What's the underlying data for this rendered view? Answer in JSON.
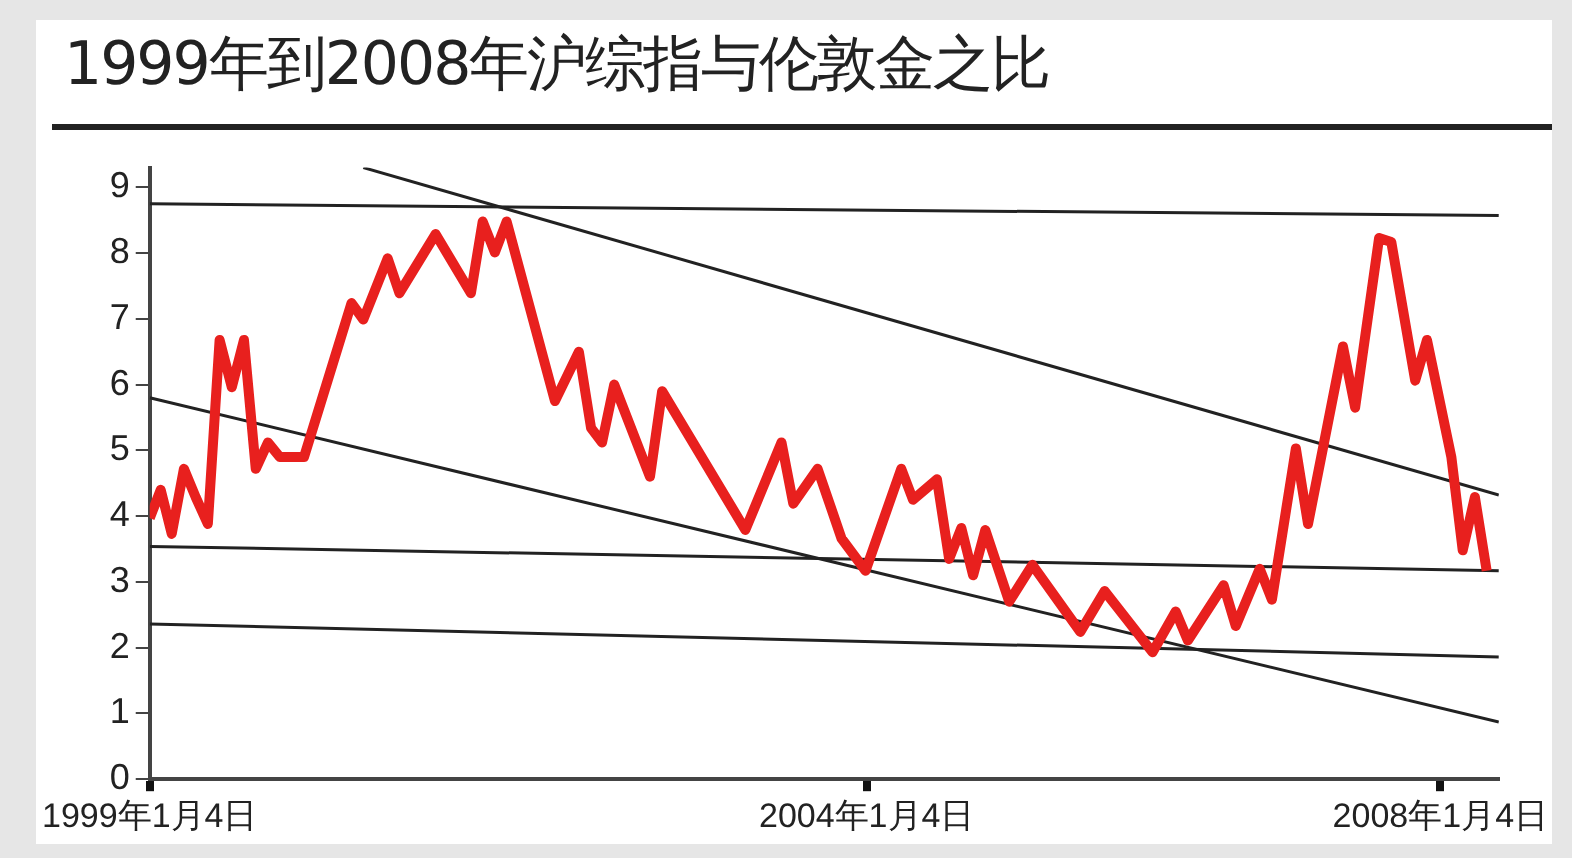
{
  "chart_data": {
    "type": "line",
    "title": "1999年到2008年沪综指与伦敦金之比",
    "xlim": [
      "1999-01-04",
      "2008-06"
    ],
    "xticks": [
      {
        "value": "1999-01-04",
        "label": "1999年1月4日"
      },
      {
        "value": "2004-01-04",
        "label": "2004年1月4日"
      },
      {
        "value": "2008-01-04",
        "label": "2008年1月4日"
      }
    ],
    "ylim": [
      0,
      9.3
    ],
    "yticks": [
      0,
      1,
      2,
      3,
      4,
      5,
      6,
      7,
      8,
      9
    ],
    "grid": false,
    "legend": false,
    "marker": "none",
    "line_style": "solid",
    "series": [
      {
        "color": "#e8201e",
        "x": [
          "1999-01-04",
          "1999-02",
          "1999-03",
          "1999-04",
          "1999-05",
          "1999-06",
          "1999-07",
          "1999-08",
          "1999-09",
          "1999-10",
          "1999-11",
          "1999-12",
          "2000-02",
          "2000-06",
          "2000-07",
          "2000-09",
          "2000-10",
          "2001-01",
          "2001-04",
          "2001-05",
          "2001-06",
          "2001-07",
          "2001-11",
          "2002-01",
          "2002-02",
          "2002-03",
          "2002-04",
          "2002-07",
          "2002-08",
          "2003-03",
          "2003-06",
          "2003-07",
          "2003-09",
          "2003-11",
          "2004-01",
          "2004-04",
          "2004-05",
          "2004-07",
          "2004-08",
          "2004-09",
          "2004-10",
          "2004-11",
          "2005-01",
          "2005-03",
          "2005-07",
          "2005-09",
          "2006-01",
          "2006-03",
          "2006-04",
          "2006-07",
          "2006-08",
          "2006-10",
          "2006-11",
          "2007-01",
          "2007-02",
          "2007-05",
          "2007-06",
          "2007-08",
          "2007-09",
          "2007-11",
          "2007-12",
          "2008-02",
          "2008-03",
          "2008-04",
          "2008-05"
        ],
        "values": [
          3.97,
          4.4,
          3.73,
          4.72,
          4.29,
          3.88,
          6.68,
          5.96,
          6.68,
          4.72,
          5.12,
          4.9,
          4.9,
          7.24,
          6.99,
          7.92,
          7.39,
          8.29,
          7.39,
          8.48,
          8.01,
          8.48,
          5.75,
          6.5,
          5.34,
          5.12,
          6.0,
          4.6,
          5.9,
          3.79,
          5.12,
          4.19,
          4.72,
          3.66,
          3.17,
          4.72,
          4.25,
          4.56,
          3.35,
          3.82,
          3.1,
          3.79,
          2.7,
          3.26,
          2.24,
          2.86,
          1.93,
          2.55,
          2.11,
          2.95,
          2.33,
          3.2,
          2.73,
          5.03,
          3.88,
          6.58,
          5.65,
          8.23,
          8.17,
          6.06,
          6.68,
          4.9,
          3.48,
          4.29,
          3.17
        ]
      },
      {
        "type": "line",
        "color": "#222222",
        "x": [
          "1999-01-04",
          "2008-06"
        ],
        "values": [
          8.75,
          8.57
        ]
      },
      {
        "type": "line",
        "color": "#222222",
        "x": [
          "2000-07",
          "2008-06"
        ],
        "values": [
          9.3,
          4.32
        ]
      },
      {
        "type": "line",
        "color": "#222222",
        "x": [
          "1999-01-04",
          "2008-06"
        ],
        "values": [
          5.8,
          0.87
        ]
      },
      {
        "type": "line",
        "color": "#222222",
        "x": [
          "1999-01-04",
          "2008-06"
        ],
        "values": [
          3.54,
          3.17
        ]
      },
      {
        "type": "line",
        "color": "#222222",
        "x": [
          "1999-01-04",
          "2008-06"
        ],
        "values": [
          2.36,
          1.86
        ]
      }
    ]
  }
}
